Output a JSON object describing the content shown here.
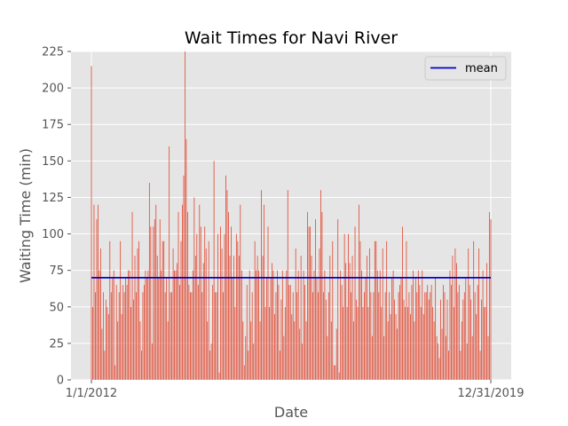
{
  "chart_data": {
    "type": "bar",
    "title": "Wait Times for Navi River",
    "xlabel": "Date",
    "ylabel": "Waiting Time (min)",
    "x_tick_labels": [
      "1/1/2012",
      "12/31/2019"
    ],
    "x_range": [
      "1/1/2012",
      "12/31/2019"
    ],
    "ylim": [
      0,
      225
    ],
    "y_ticks": [
      0,
      25,
      50,
      75,
      100,
      125,
      150,
      175,
      200,
      225
    ],
    "grid": true,
    "legend": {
      "position": "top-right",
      "entries": [
        "mean"
      ]
    },
    "colors": {
      "bars": "#e24a33",
      "mean": "#0000cc",
      "background": "#e5e5e5",
      "grid": "#ffffff"
    },
    "mean": 70,
    "values": [
      215,
      50,
      120,
      60,
      110,
      120,
      75,
      90,
      35,
      60,
      20,
      55,
      50,
      45,
      95,
      60,
      70,
      75,
      10,
      65,
      40,
      60,
      95,
      45,
      65,
      60,
      70,
      65,
      75,
      75,
      50,
      115,
      55,
      85,
      60,
      90,
      95,
      40,
      20,
      60,
      65,
      75,
      70,
      75,
      135,
      105,
      25,
      105,
      110,
      120,
      85,
      70,
      110,
      75,
      95,
      95,
      60,
      70,
      40,
      160,
      60,
      60,
      90,
      75,
      75,
      80,
      115,
      65,
      95,
      120,
      140,
      225,
      165,
      115,
      65,
      60,
      60,
      75,
      125,
      85,
      100,
      65,
      120,
      105,
      60,
      80,
      105,
      90,
      40,
      95,
      20,
      25,
      65,
      150,
      60,
      60,
      100,
      5,
      105,
      90,
      60,
      100,
      140,
      130,
      115,
      85,
      105,
      70,
      85,
      50,
      100,
      95,
      85,
      120,
      75,
      40,
      10,
      30,
      65,
      20,
      75,
      40,
      60,
      25,
      95,
      75,
      85,
      75,
      40,
      130,
      85,
      120,
      50,
      70,
      105,
      50,
      70,
      80,
      75,
      45,
      60,
      75,
      65,
      20,
      55,
      75,
      30,
      50,
      75,
      130,
      65,
      65,
      45,
      60,
      40,
      90,
      60,
      75,
      35,
      85,
      25,
      75,
      65,
      40,
      115,
      105,
      105,
      85,
      60,
      75,
      110,
      70,
      60,
      90,
      130,
      115,
      60,
      75,
      55,
      30,
      60,
      85,
      40,
      95,
      10,
      10,
      35,
      110,
      5,
      75,
      65,
      50,
      100,
      80,
      50,
      100,
      80,
      60,
      85,
      40,
      105,
      55,
      50,
      120,
      95,
      75,
      50,
      60,
      70,
      85,
      50,
      90,
      60,
      30,
      60,
      95,
      95,
      75,
      60,
      75,
      50,
      90,
      30,
      60,
      95,
      40,
      60,
      45,
      70,
      75,
      55,
      45,
      35,
      60,
      65,
      70,
      105,
      55,
      50,
      95,
      50,
      60,
      45,
      65,
      75,
      40,
      70,
      60,
      75,
      65,
      50,
      75,
      45,
      60,
      60,
      65,
      55,
      60,
      65,
      50,
      40,
      70,
      30,
      25,
      15,
      55,
      35,
      65,
      60,
      30,
      55,
      20,
      75,
      65,
      85,
      50,
      90,
      80,
      60,
      65,
      20,
      40,
      55,
      60,
      70,
      25,
      90,
      65,
      55,
      30,
      95,
      60,
      45,
      65,
      90,
      20,
      55,
      75,
      50,
      50,
      80,
      30,
      115,
      110
    ]
  }
}
